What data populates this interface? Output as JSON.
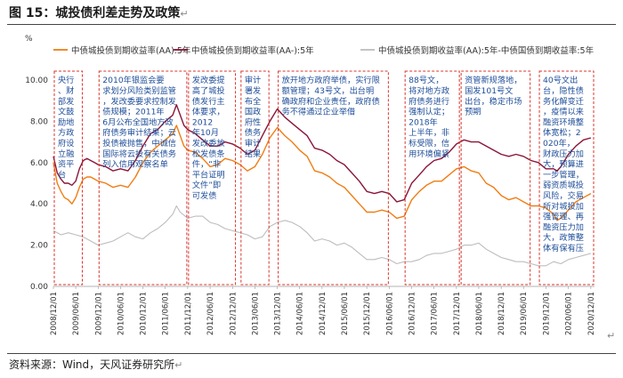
{
  "figure": {
    "title": "图 15：城投债利差走势及政策",
    "source": "资料来源：Wind，天风证券研究所",
    "return_mark": "↵"
  },
  "chart_data": {
    "type": "line",
    "title": "",
    "xlabel": "",
    "ylabel": "%",
    "ylim": [
      0,
      10
    ],
    "yticks": [
      "0.00",
      "2.00",
      "4.00",
      "6.00",
      "8.00",
      "10.00"
    ],
    "xlim": [
      "2008-12-01",
      "2020-12-31"
    ],
    "xticks": [
      "2008/12/01",
      "2009/06/01",
      "2009/12/01",
      "2010/06/01",
      "2010/12/01",
      "2011/06/01",
      "2011/12/01",
      "2012/06/01",
      "2012/12/01",
      "2013/06/01",
      "2013/12/01",
      "2014/06/01",
      "2014/12/01",
      "2015/06/01",
      "2015/12/01",
      "2016/06/01",
      "2016/12/01",
      "2017/06/01",
      "2017/12/01",
      "2018/06/01",
      "2018/12/01",
      "2019/06/01",
      "2019/12/01",
      "2020/06/01",
      "2020/12/01"
    ],
    "legend_position": "top",
    "grid": false,
    "series": [
      {
        "name": "中债城投债到期收益率(AA):5年",
        "color": "#f07d14",
        "points": [
          [
            "2008-12-01",
            6.0
          ],
          [
            "2009-01-01",
            5.0
          ],
          [
            "2009-02-01",
            4.6
          ],
          [
            "2009-03-01",
            4.3
          ],
          [
            "2009-04-01",
            4.2
          ],
          [
            "2009-05-01",
            4.0
          ],
          [
            "2009-06-01",
            4.3
          ],
          [
            "2009-07-01",
            4.8
          ],
          [
            "2009-08-01",
            5.2
          ],
          [
            "2009-09-01",
            5.3
          ],
          [
            "2009-10-01",
            5.3
          ],
          [
            "2009-11-01",
            5.2
          ],
          [
            "2009-12-01",
            5.1
          ],
          [
            "2010-02-01",
            5.0
          ],
          [
            "2010-04-01",
            4.8
          ],
          [
            "2010-06-01",
            4.9
          ],
          [
            "2010-08-01",
            4.8
          ],
          [
            "2010-10-01",
            5.3
          ],
          [
            "2010-12-01",
            6.0
          ],
          [
            "2011-02-01",
            6.5
          ],
          [
            "2011-04-01",
            6.8
          ],
          [
            "2011-06-01",
            7.1
          ],
          [
            "2011-08-01",
            7.4
          ],
          [
            "2011-09-01",
            7.8
          ],
          [
            "2011-10-01",
            7.3
          ],
          [
            "2011-11-01",
            6.8
          ],
          [
            "2011-12-01",
            6.6
          ],
          [
            "2012-02-01",
            6.5
          ],
          [
            "2012-04-01",
            6.2
          ],
          [
            "2012-06-01",
            5.8
          ],
          [
            "2012-08-01",
            5.9
          ],
          [
            "2012-10-01",
            6.2
          ],
          [
            "2012-12-01",
            6.1
          ],
          [
            "2013-02-01",
            5.9
          ],
          [
            "2013-04-01",
            5.6
          ],
          [
            "2013-06-01",
            5.8
          ],
          [
            "2013-08-01",
            6.4
          ],
          [
            "2013-10-01",
            7.2
          ],
          [
            "2013-12-01",
            7.7
          ],
          [
            "2014-01-01",
            7.5
          ],
          [
            "2014-02-01",
            7.3
          ],
          [
            "2014-04-01",
            7.0
          ],
          [
            "2014-06-01",
            6.6
          ],
          [
            "2014-08-01",
            6.3
          ],
          [
            "2014-10-01",
            5.6
          ],
          [
            "2014-12-01",
            5.5
          ],
          [
            "2015-02-01",
            5.3
          ],
          [
            "2015-04-01",
            5.0
          ],
          [
            "2015-06-01",
            4.8
          ],
          [
            "2015-08-01",
            4.4
          ],
          [
            "2015-10-01",
            4.0
          ],
          [
            "2015-12-01",
            3.6
          ],
          [
            "2016-02-01",
            3.6
          ],
          [
            "2016-04-01",
            3.7
          ],
          [
            "2016-06-01",
            3.6
          ],
          [
            "2016-08-01",
            3.3
          ],
          [
            "2016-10-01",
            3.4
          ],
          [
            "2016-12-01",
            4.2
          ],
          [
            "2017-02-01",
            4.6
          ],
          [
            "2017-04-01",
            4.9
          ],
          [
            "2017-06-01",
            5.1
          ],
          [
            "2017-08-01",
            5.1
          ],
          [
            "2017-10-01",
            5.4
          ],
          [
            "2017-12-01",
            5.7
          ],
          [
            "2018-02-01",
            5.8
          ],
          [
            "2018-04-01",
            5.6
          ],
          [
            "2018-06-01",
            5.5
          ],
          [
            "2018-08-01",
            5.0
          ],
          [
            "2018-10-01",
            4.8
          ],
          [
            "2018-12-01",
            4.4
          ],
          [
            "2019-02-01",
            4.2
          ],
          [
            "2019-04-01",
            4.3
          ],
          [
            "2019-06-01",
            4.1
          ],
          [
            "2019-08-01",
            3.9
          ],
          [
            "2019-10-01",
            3.9
          ],
          [
            "2019-12-01",
            3.8
          ],
          [
            "2020-02-01",
            3.5
          ],
          [
            "2020-03-01",
            3.2
          ],
          [
            "2020-04-01",
            3.3
          ],
          [
            "2020-06-01",
            3.7
          ],
          [
            "2020-08-01",
            4.1
          ],
          [
            "2020-10-01",
            4.3
          ],
          [
            "2020-12-01",
            4.5
          ]
        ]
      },
      {
        "name": "中债城投债到期收益率(AA-):5年",
        "color": "#8a1538",
        "points": [
          [
            "2008-12-01",
            6.3
          ],
          [
            "2009-01-01",
            5.5
          ],
          [
            "2009-02-01",
            5.2
          ],
          [
            "2009-03-01",
            5.0
          ],
          [
            "2009-04-01",
            5.0
          ],
          [
            "2009-05-01",
            4.9
          ],
          [
            "2009-06-01",
            5.1
          ],
          [
            "2009-07-01",
            5.7
          ],
          [
            "2009-08-01",
            6.1
          ],
          [
            "2009-09-01",
            6.2
          ],
          [
            "2009-10-01",
            6.1
          ],
          [
            "2009-11-01",
            6.0
          ],
          [
            "2009-12-01",
            5.9
          ],
          [
            "2010-02-01",
            5.8
          ],
          [
            "2010-04-01",
            5.6
          ],
          [
            "2010-06-01",
            5.7
          ],
          [
            "2010-08-01",
            5.6
          ],
          [
            "2010-10-01",
            6.1
          ],
          [
            "2010-12-01",
            6.8
          ],
          [
            "2011-02-01",
            7.4
          ],
          [
            "2011-04-01",
            7.6
          ],
          [
            "2011-06-01",
            8.0
          ],
          [
            "2011-08-01",
            8.3
          ],
          [
            "2011-09-01",
            8.8
          ],
          [
            "2011-10-01",
            8.3
          ],
          [
            "2011-11-01",
            7.8
          ],
          [
            "2011-12-01",
            7.6
          ],
          [
            "2012-02-01",
            7.4
          ],
          [
            "2012-04-01",
            7.1
          ],
          [
            "2012-06-01",
            6.8
          ],
          [
            "2012-08-01",
            6.8
          ],
          [
            "2012-10-01",
            7.0
          ],
          [
            "2012-12-01",
            6.9
          ],
          [
            "2013-02-01",
            6.7
          ],
          [
            "2013-04-01",
            6.4
          ],
          [
            "2013-06-01",
            6.6
          ],
          [
            "2013-08-01",
            7.3
          ],
          [
            "2013-10-01",
            8.0
          ],
          [
            "2013-12-01",
            8.6
          ],
          [
            "2014-01-01",
            8.4
          ],
          [
            "2014-02-01",
            8.2
          ],
          [
            "2014-04-01",
            7.9
          ],
          [
            "2014-06-01",
            7.6
          ],
          [
            "2014-08-01",
            7.3
          ],
          [
            "2014-10-01",
            6.7
          ],
          [
            "2014-12-01",
            6.6
          ],
          [
            "2015-02-01",
            6.4
          ],
          [
            "2015-04-01",
            6.1
          ],
          [
            "2015-06-01",
            5.9
          ],
          [
            "2015-08-01",
            5.5
          ],
          [
            "2015-10-01",
            5.1
          ],
          [
            "2015-12-01",
            4.6
          ],
          [
            "2016-02-01",
            4.5
          ],
          [
            "2016-04-01",
            4.6
          ],
          [
            "2016-06-01",
            4.5
          ],
          [
            "2016-08-01",
            4.1
          ],
          [
            "2016-10-01",
            4.2
          ],
          [
            "2016-12-01",
            5.0
          ],
          [
            "2017-02-01",
            5.4
          ],
          [
            "2017-04-01",
            5.8
          ],
          [
            "2017-06-01",
            6.1
          ],
          [
            "2017-08-01",
            6.2
          ],
          [
            "2017-10-01",
            6.5
          ],
          [
            "2017-12-01",
            6.9
          ],
          [
            "2018-02-01",
            7.1
          ],
          [
            "2018-04-01",
            7.0
          ],
          [
            "2018-06-01",
            7.0
          ],
          [
            "2018-08-01",
            6.8
          ],
          [
            "2018-10-01",
            6.6
          ],
          [
            "2018-12-01",
            6.4
          ],
          [
            "2019-02-01",
            6.3
          ],
          [
            "2019-04-01",
            6.4
          ],
          [
            "2019-06-01",
            6.3
          ],
          [
            "2019-08-01",
            6.1
          ],
          [
            "2019-10-01",
            6.0
          ],
          [
            "2019-12-01",
            5.7
          ],
          [
            "2020-02-01",
            5.7
          ],
          [
            "2020-03-01",
            5.6
          ],
          [
            "2020-04-01",
            5.8
          ],
          [
            "2020-06-01",
            6.4
          ],
          [
            "2020-08-01",
            6.8
          ],
          [
            "2020-10-01",
            7.1
          ],
          [
            "2020-12-01",
            7.2
          ]
        ]
      },
      {
        "name": "中债城投债到期收益率(AA):5年-中债国债到期收益率:5年",
        "color": "#bdbdbd",
        "points": [
          [
            "2008-12-01",
            2.7
          ],
          [
            "2009-02-01",
            2.5
          ],
          [
            "2009-04-01",
            2.6
          ],
          [
            "2009-06-01",
            2.5
          ],
          [
            "2009-08-01",
            2.4
          ],
          [
            "2009-10-01",
            2.2
          ],
          [
            "2009-12-01",
            2.0
          ],
          [
            "2010-02-01",
            2.1
          ],
          [
            "2010-04-01",
            2.2
          ],
          [
            "2010-06-01",
            2.4
          ],
          [
            "2010-08-01",
            2.6
          ],
          [
            "2010-10-01",
            2.4
          ],
          [
            "2010-12-01",
            2.3
          ],
          [
            "2011-02-01",
            2.6
          ],
          [
            "2011-04-01",
            2.8
          ],
          [
            "2011-06-01",
            3.1
          ],
          [
            "2011-08-01",
            3.5
          ],
          [
            "2011-09-01",
            3.9
          ],
          [
            "2011-10-01",
            3.6
          ],
          [
            "2011-12-01",
            3.3
          ],
          [
            "2012-02-01",
            3.4
          ],
          [
            "2012-04-01",
            3.4
          ],
          [
            "2012-06-01",
            3.1
          ],
          [
            "2012-08-01",
            3.0
          ],
          [
            "2012-10-01",
            2.8
          ],
          [
            "2012-12-01",
            2.7
          ],
          [
            "2013-02-01",
            2.6
          ],
          [
            "2013-04-01",
            2.5
          ],
          [
            "2013-06-01",
            2.3
          ],
          [
            "2013-08-01",
            2.4
          ],
          [
            "2013-10-01",
            2.9
          ],
          [
            "2013-12-01",
            3.1
          ],
          [
            "2014-02-01",
            3.2
          ],
          [
            "2014-04-01",
            3.1
          ],
          [
            "2014-06-01",
            2.9
          ],
          [
            "2014-08-01",
            2.6
          ],
          [
            "2014-10-01",
            2.2
          ],
          [
            "2014-12-01",
            2.3
          ],
          [
            "2015-02-01",
            2.2
          ],
          [
            "2015-04-01",
            2.0
          ],
          [
            "2015-06-01",
            2.1
          ],
          [
            "2015-08-01",
            1.9
          ],
          [
            "2015-10-01",
            1.6
          ],
          [
            "2015-12-01",
            1.3
          ],
          [
            "2016-02-01",
            1.3
          ],
          [
            "2016-04-01",
            1.4
          ],
          [
            "2016-06-01",
            1.3
          ],
          [
            "2016-08-01",
            1.1
          ],
          [
            "2016-10-01",
            1.2
          ],
          [
            "2016-12-01",
            1.2
          ],
          [
            "2017-02-01",
            1.3
          ],
          [
            "2017-04-01",
            1.5
          ],
          [
            "2017-06-01",
            1.6
          ],
          [
            "2017-08-01",
            1.6
          ],
          [
            "2017-10-01",
            1.7
          ],
          [
            "2017-12-01",
            1.8
          ],
          [
            "2018-02-01",
            2.0
          ],
          [
            "2018-04-01",
            2.0
          ],
          [
            "2018-06-01",
            2.1
          ],
          [
            "2018-08-01",
            1.8
          ],
          [
            "2018-10-01",
            1.6
          ],
          [
            "2018-12-01",
            1.4
          ],
          [
            "2019-02-01",
            1.3
          ],
          [
            "2019-04-01",
            1.2
          ],
          [
            "2019-06-01",
            1.2
          ],
          [
            "2019-08-01",
            1.1
          ],
          [
            "2019-10-01",
            1.0
          ],
          [
            "2019-12-01",
            1.0
          ],
          [
            "2020-02-01",
            1.2
          ],
          [
            "2020-04-01",
            1.1
          ],
          [
            "2020-06-01",
            1.3
          ],
          [
            "2020-08-01",
            1.4
          ],
          [
            "2020-10-01",
            1.5
          ],
          [
            "2020-12-01",
            1.6
          ]
        ]
      }
    ],
    "annotations": [
      {
        "start": "2008-12-01",
        "end": "2009-08-01",
        "color": "#1f4e99",
        "text": "央行、财部发文鼓励地方政府设立融资平台"
      },
      {
        "start": "2009-12-01",
        "end": "2011-12-01",
        "color": "#1f4e99",
        "text": "2010年银监会要求划分风险类别监管，发改委要求控制发债规模；2011年6月公布全国地方政府债务审计结果；云投债被抛售，中诚信国际将云投有关债务列入信用观察名单"
      },
      {
        "start": "2011-12-01",
        "end": "2013-01-01",
        "color": "#1f4e99",
        "text": "发改委提高了城投债发行主体要求，2012年10月发改委放松发债条件，“非平台证明文件”即可发债"
      },
      {
        "start": "2013-02-01",
        "end": "2013-10-01",
        "color": "#1f4e99",
        "text": "审计署发布全国政府性债务审计结果"
      },
      {
        "start": "2013-12-01",
        "end": "2016-06-01",
        "color": "#1f4e99",
        "text": "放开地方政府举债，实行限额管理；43号文，出台明确政府和企业责任，政府债务不得通过企业举借"
      },
      {
        "start": "2016-10-01",
        "end": "2018-01-01",
        "color": "#1f4e99",
        "text": "88号文，将对地方政府债务进行强制认定；2018年上半年，非标受限，信用环境偏紧"
      },
      {
        "start": "2018-01-01",
        "end": "2019-08-01",
        "color": "#1f4e99",
        "text": "资管新规落地，国发101号文出台，稳定市场预期"
      },
      {
        "start": "2019-10-01",
        "end": "2020-12-31",
        "color": "#1f4e99",
        "text": "40号文出台，隐性债务化解变迁，疫情以来融资环境整体宽松；2020年，财政压力加大，预算进一步管理，弱资质城投风险，交易所对城投加强管理、再融资压力加大，政策整体有保有压"
      }
    ]
  }
}
